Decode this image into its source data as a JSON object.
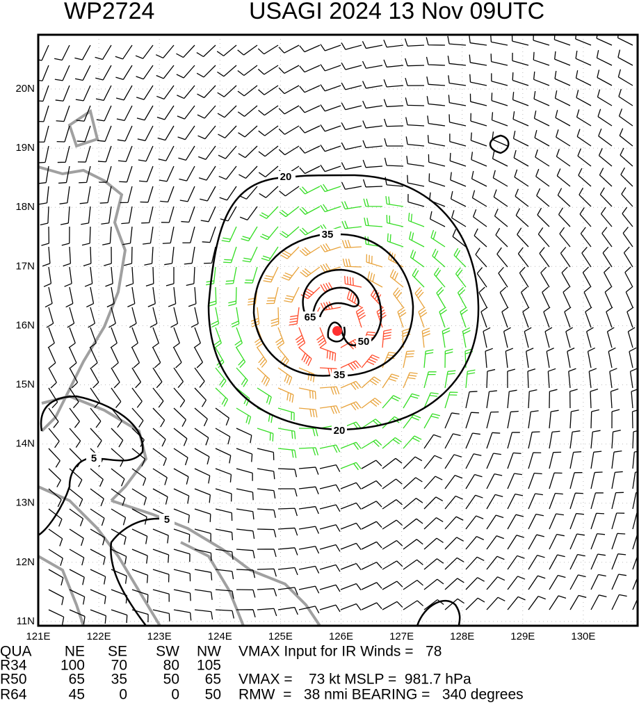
{
  "header": {
    "id": "WP2724",
    "title": "USAGI 2024 13 Nov 09UTC"
  },
  "map": {
    "lat_labels": [
      "20N",
      "19N",
      "18N",
      "17N",
      "16N",
      "15N",
      "14N",
      "13N",
      "12N",
      "11N"
    ],
    "lon_labels": [
      "121E",
      "122E",
      "123E",
      "124E",
      "125E",
      "126E",
      "127E",
      "128E",
      "129E",
      "130E"
    ],
    "contour_labels": [
      "20",
      "35",
      "65",
      "50",
      "35",
      "20",
      "5",
      "5"
    ]
  },
  "table": {
    "header": [
      "QUA",
      "NE",
      "SE",
      "SW",
      "NW"
    ],
    "rows": [
      [
        "R34",
        "100",
        "70",
        "80",
        "105"
      ],
      [
        "R50",
        "65",
        "35",
        "50",
        "65"
      ],
      [
        "R64",
        "45",
        "0",
        "0",
        "50"
      ]
    ]
  },
  "notes": [
    "VMAX Input for IR Winds =   78",
    "VMAX =    73 kt MSLP =  981.7 hPa",
    "RMW  =   38 nmi BEARING =   340 degrees"
  ]
}
